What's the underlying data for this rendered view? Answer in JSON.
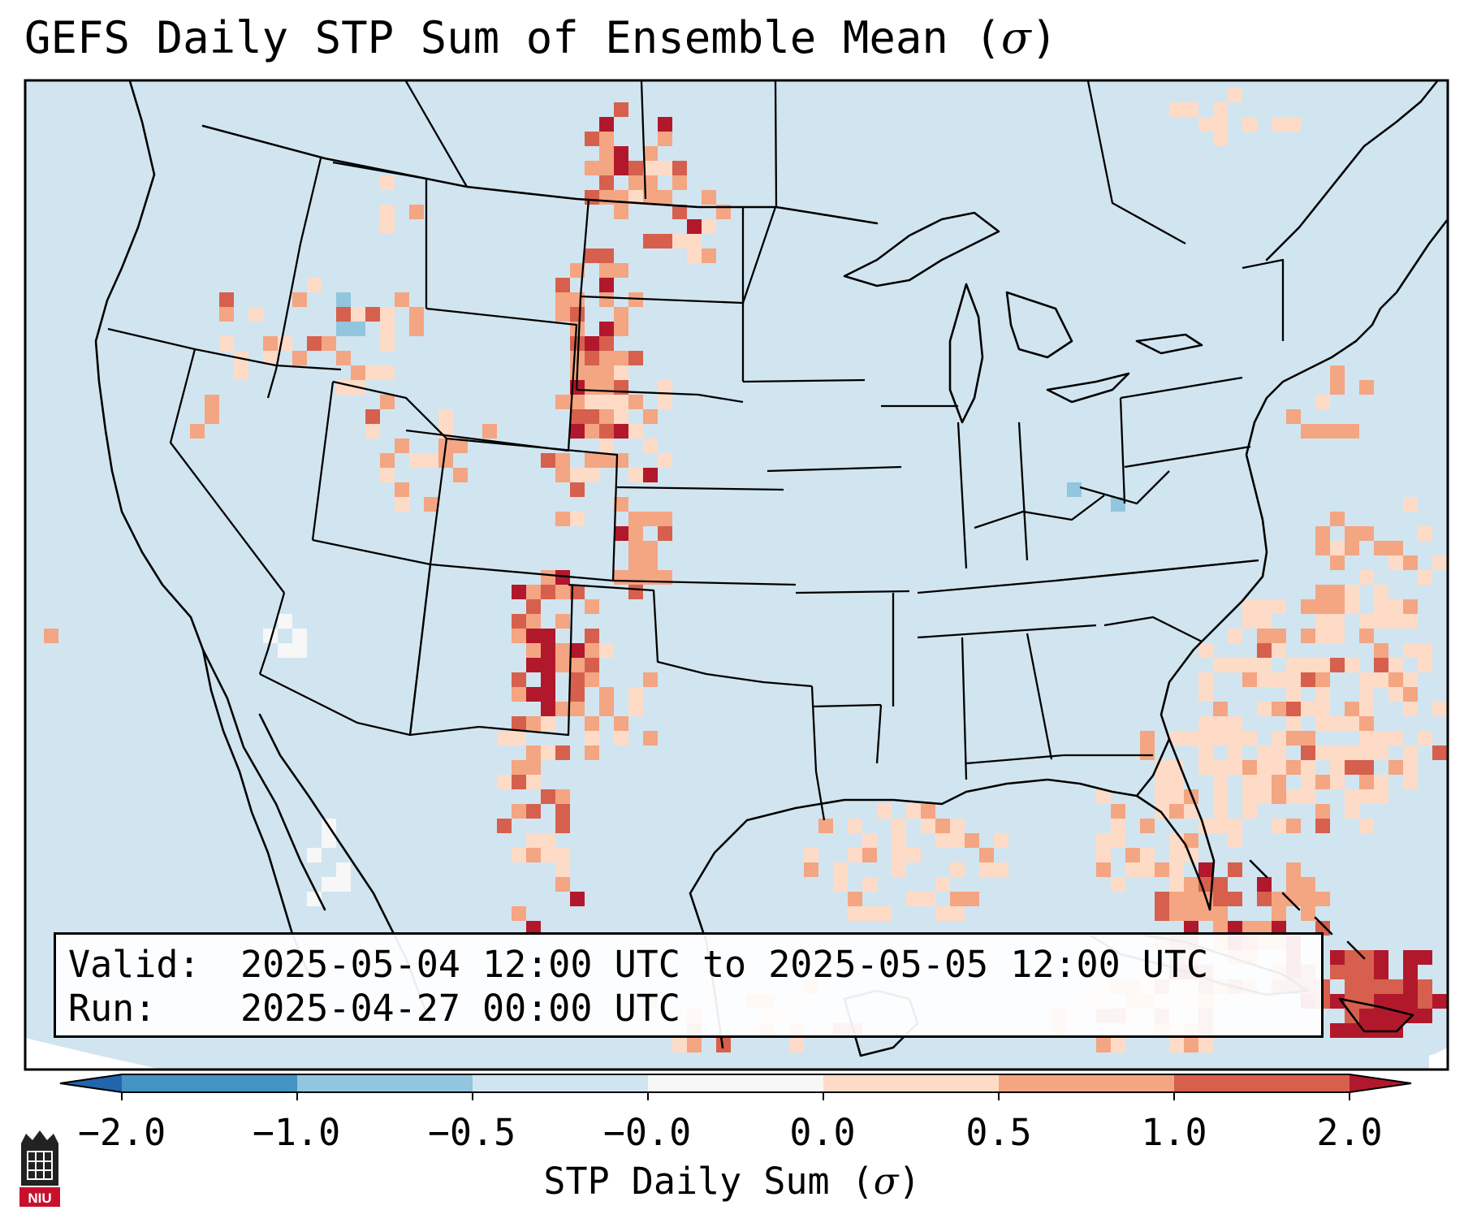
{
  "title": {
    "text": "GEFS Daily STP Sum of Ensemble Mean (",
    "sigma": "σ",
    "close": ")"
  },
  "info_box": {
    "valid_label": "Valid:",
    "valid_value": "2025-05-04 12:00 UTC to 2025-05-05 12:00 UTC",
    "run_label": "Run:",
    "run_value": "2025-04-27 00:00 UTC"
  },
  "colorbar": {
    "label_text": "STP Daily Sum (",
    "label_sigma": "σ",
    "label_close": ")",
    "ticks": [
      "−2.0",
      "−1.0",
      "−0.5",
      "−0.0",
      "0.0",
      "0.5",
      "1.0",
      "2.0"
    ],
    "colors": [
      "#4393c3",
      "#92c5de",
      "#d1e5f0",
      "#f7f7f7",
      "#fddbc7",
      "#f4a582",
      "#d6604d"
    ],
    "extend_low_color": "#2166ac",
    "extend_high_color": "#b2182b"
  },
  "colors": {
    "background_field": "#d1e5f0",
    "cat_light": "#fddbc7",
    "cat_medium": "#f4a582",
    "cat_strong": "#d6604d",
    "cat_extreme": "#b2182b",
    "cat_negative": "#92c5de",
    "cat_zero": "#f7f7f7"
  },
  "logo": {
    "text": "NIU"
  }
}
